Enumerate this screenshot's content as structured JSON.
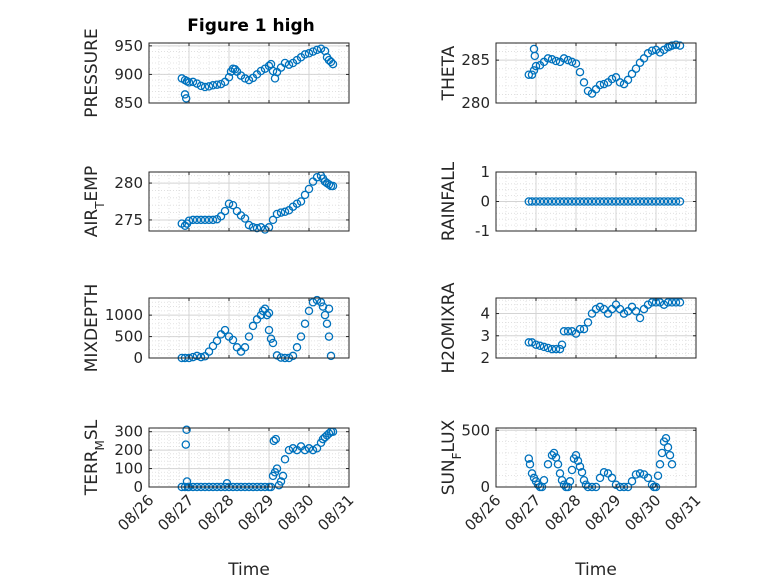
{
  "figure": {
    "title": "Figure 1 high"
  },
  "colors": {
    "marker": "#0072BD",
    "grid": "#dcdcdc",
    "axis": "#262626"
  },
  "chart_data": [
    {
      "type": "scatter",
      "id": "pressure",
      "ylabel_parts": [
        [
          "PRESSURE",
          false
        ]
      ],
      "title": "Figure 1 high",
      "xlabel": "",
      "yticks": [
        850,
        900,
        950
      ],
      "ylim": [
        850,
        955
      ],
      "xlim_days": [
        26,
        31
      ],
      "show_xticks": false,
      "x": [
        26.82,
        26.9,
        26.95,
        27.0,
        27.1,
        27.2,
        27.3,
        27.4,
        27.5,
        27.6,
        27.7,
        27.8,
        27.9,
        28.0,
        28.05,
        28.1,
        28.15,
        28.2,
        28.3,
        28.4,
        28.5,
        28.6,
        28.7,
        28.8,
        28.9,
        29.0,
        29.05,
        29.1,
        29.15,
        29.2,
        29.3,
        29.4,
        29.5,
        29.6,
        29.7,
        29.8,
        29.9,
        30.0,
        30.1,
        30.2,
        30.3,
        30.4,
        30.45,
        30.5,
        30.55,
        30.6,
        26.9,
        26.93
      ],
      "y": [
        893,
        890,
        888,
        886,
        887,
        884,
        880,
        878,
        879,
        881,
        882,
        883,
        887,
        895,
        905,
        910,
        909,
        905,
        898,
        893,
        890,
        894,
        900,
        906,
        910,
        915,
        918,
        906,
        893,
        904,
        912,
        920,
        917,
        920,
        925,
        930,
        935,
        937,
        940,
        943,
        945,
        941,
        930,
        925,
        922,
        918,
        865,
        858
      ]
    },
    {
      "type": "scatter",
      "id": "theta",
      "ylabel_parts": [
        [
          "THETA",
          false
        ]
      ],
      "xlabel": "",
      "yticks": [
        280,
        285
      ],
      "ylim": [
        280,
        287
      ],
      "xlim_days": [
        26,
        31
      ],
      "show_xticks": false,
      "x": [
        26.82,
        26.9,
        26.95,
        27.0,
        27.1,
        27.2,
        27.3,
        27.4,
        27.5,
        27.6,
        27.7,
        27.8,
        27.9,
        28.0,
        28.1,
        28.2,
        28.3,
        28.4,
        28.5,
        28.6,
        28.7,
        28.8,
        28.9,
        29.0,
        29.1,
        29.2,
        29.3,
        29.4,
        29.5,
        29.6,
        29.7,
        29.8,
        29.9,
        30.0,
        30.1,
        30.2,
        30.3,
        30.35,
        30.4,
        30.5,
        30.6,
        26.95,
        26.97
      ],
      "y": [
        283.3,
        283.3,
        283.8,
        284.3,
        284.4,
        284.8,
        285.2,
        285.1,
        284.9,
        284.8,
        285.2,
        285.0,
        284.8,
        284.6,
        283.6,
        282.4,
        281.4,
        281.1,
        281.6,
        282.1,
        282.2,
        282.4,
        282.8,
        283.0,
        282.4,
        282.2,
        282.7,
        283.4,
        284.0,
        284.7,
        285.2,
        285.8,
        286.1,
        286.2,
        285.9,
        286.2,
        286.5,
        286.6,
        286.7,
        286.8,
        286.7,
        286.3,
        285.5
      ]
    },
    {
      "type": "scatter",
      "id": "airtemp",
      "ylabel_parts": [
        [
          "AIR",
          false
        ],
        [
          "T",
          true
        ],
        [
          "EMP",
          false
        ]
      ],
      "xlabel": "",
      "yticks": [
        275,
        280
      ],
      "ylim": [
        273.5,
        281.5
      ],
      "xlim_days": [
        26,
        31
      ],
      "show_xticks": false,
      "x": [
        26.82,
        26.9,
        26.95,
        27.0,
        27.1,
        27.2,
        27.3,
        27.4,
        27.5,
        27.6,
        27.7,
        27.8,
        27.9,
        28.0,
        28.1,
        28.2,
        28.3,
        28.4,
        28.5,
        28.6,
        28.7,
        28.8,
        28.9,
        29.0,
        29.1,
        29.2,
        29.3,
        29.4,
        29.5,
        29.6,
        29.7,
        29.8,
        29.9,
        30.0,
        30.1,
        30.2,
        30.3,
        30.35,
        30.4,
        30.45,
        30.5,
        30.55,
        30.6
      ],
      "y": [
        274.5,
        274.2,
        274.5,
        274.9,
        275.0,
        275.0,
        275.0,
        275.0,
        275.0,
        275.0,
        275.1,
        275.5,
        276.2,
        277.2,
        277.0,
        276.2,
        275.6,
        275.2,
        274.3,
        274.0,
        273.9,
        274.0,
        273.7,
        274.0,
        275.0,
        275.8,
        276.0,
        276.1,
        276.3,
        276.8,
        277.2,
        277.5,
        278.4,
        279.2,
        280.2,
        280.8,
        281.0,
        280.6,
        280.2,
        280.0,
        279.8,
        279.6,
        279.6
      ]
    },
    {
      "type": "scatter",
      "id": "rainfall",
      "ylabel_parts": [
        [
          "RAINFALL",
          false
        ]
      ],
      "xlabel": "",
      "yticks": [
        -1,
        0,
        1
      ],
      "ylim": [
        -1,
        1
      ],
      "xlim_days": [
        26,
        31
      ],
      "show_xticks": false,
      "x": [
        26.82,
        26.9,
        27.0,
        27.1,
        27.2,
        27.3,
        27.4,
        27.5,
        27.6,
        27.7,
        27.8,
        27.9,
        28.0,
        28.1,
        28.2,
        28.3,
        28.4,
        28.5,
        28.6,
        28.7,
        28.8,
        28.9,
        29.0,
        29.1,
        29.2,
        29.3,
        29.4,
        29.5,
        29.6,
        29.7,
        29.8,
        29.9,
        30.0,
        30.1,
        30.2,
        30.3,
        30.4,
        30.5,
        30.6
      ],
      "y": [
        0,
        0,
        0,
        0,
        0,
        0,
        0,
        0,
        0,
        0,
        0,
        0,
        0,
        0,
        0,
        0,
        0,
        0,
        0,
        0,
        0,
        0,
        0,
        0,
        0,
        0,
        0,
        0,
        0,
        0,
        0,
        0,
        0,
        0,
        0,
        0,
        0,
        0,
        0
      ]
    },
    {
      "type": "scatter",
      "id": "mixdepth",
      "ylabel_parts": [
        [
          "MIXDEPTH",
          false
        ]
      ],
      "xlabel": "",
      "yticks": [
        0,
        500,
        1000
      ],
      "ylim": [
        0,
        1400
      ],
      "xlim_days": [
        26,
        31
      ],
      "show_xticks": false,
      "x": [
        26.82,
        26.9,
        27.0,
        27.1,
        27.2,
        27.3,
        27.4,
        27.5,
        27.6,
        27.7,
        27.8,
        27.9,
        28.0,
        28.1,
        28.2,
        28.3,
        28.4,
        28.5,
        28.6,
        28.7,
        28.8,
        28.85,
        28.9,
        28.95,
        29.0,
        29.05,
        29.1,
        29.2,
        29.3,
        29.4,
        29.5,
        29.6,
        29.7,
        29.8,
        29.9,
        30.0,
        30.1,
        30.2,
        30.3,
        30.35,
        30.4,
        30.45,
        30.5,
        30.55,
        29.0,
        30.5
      ],
      "y": [
        0,
        0,
        0,
        20,
        50,
        20,
        40,
        150,
        280,
        400,
        550,
        650,
        500,
        420,
        250,
        150,
        250,
        500,
        750,
        900,
        1000,
        1100,
        1150,
        1000,
        650,
        450,
        350,
        60,
        10,
        0,
        0,
        50,
        250,
        500,
        800,
        1100,
        1300,
        1350,
        1300,
        1200,
        1000,
        800,
        500,
        50,
        1050,
        1150
      ]
    },
    {
      "type": "scatter",
      "id": "h2omixra",
      "ylabel_parts": [
        [
          "H2OMIXRA",
          false
        ]
      ],
      "xlabel": "",
      "yticks": [
        2,
        3,
        4
      ],
      "ylim": [
        2,
        4.7
      ],
      "xlim_days": [
        26,
        31
      ],
      "show_xticks": false,
      "x": [
        26.82,
        26.9,
        27.0,
        27.1,
        27.2,
        27.3,
        27.4,
        27.5,
        27.6,
        27.65,
        27.7,
        27.8,
        27.9,
        28.0,
        28.1,
        28.2,
        28.3,
        28.4,
        28.5,
        28.6,
        28.7,
        28.8,
        28.9,
        29.0,
        29.1,
        29.2,
        29.3,
        29.4,
        29.5,
        29.6,
        29.7,
        29.8,
        29.9,
        30.0,
        30.1,
        30.2,
        30.3,
        30.4,
        30.5,
        30.6
      ],
      "y": [
        2.7,
        2.7,
        2.6,
        2.55,
        2.5,
        2.45,
        2.4,
        2.4,
        2.4,
        2.6,
        3.2,
        3.2,
        3.2,
        3.1,
        3.3,
        3.3,
        3.6,
        4.0,
        4.2,
        4.3,
        4.2,
        4.0,
        4.2,
        4.4,
        4.2,
        4.0,
        4.1,
        4.3,
        4.1,
        3.8,
        4.2,
        4.4,
        4.5,
        4.5,
        4.5,
        4.4,
        4.5,
        4.5,
        4.5,
        4.5
      ]
    },
    {
      "type": "scatter",
      "id": "terrmsl",
      "ylabel_parts": [
        [
          "TERR",
          false
        ],
        [
          "M",
          true
        ],
        [
          "SL",
          false
        ]
      ],
      "xlabel": "Time",
      "yticks": [
        0,
        100,
        200,
        300
      ],
      "ylim": [
        0,
        320
      ],
      "xlim_days": [
        26,
        31
      ],
      "show_xticks": true,
      "xticklabels": [
        "08/26",
        "08/27",
        "08/28",
        "08/29",
        "08/30",
        "08/31"
      ],
      "x": [
        26.82,
        26.9,
        26.95,
        26.97,
        27.0,
        27.1,
        27.2,
        27.3,
        27.4,
        27.5,
        27.6,
        27.7,
        27.8,
        27.9,
        28.0,
        28.1,
        28.2,
        28.3,
        28.4,
        28.5,
        28.6,
        28.7,
        28.8,
        28.9,
        29.0,
        29.05,
        29.1,
        29.15,
        29.2,
        29.25,
        29.3,
        29.35,
        29.4,
        29.5,
        29.6,
        29.7,
        29.8,
        29.9,
        30.0,
        30.1,
        30.2,
        30.3,
        30.35,
        30.4,
        30.45,
        30.5,
        30.55,
        30.6,
        26.92,
        26.94,
        27.95,
        29.12,
        29.17
      ],
      "y": [
        0,
        0,
        30,
        0,
        0,
        0,
        0,
        0,
        0,
        0,
        0,
        0,
        0,
        0,
        0,
        0,
        0,
        0,
        0,
        0,
        0,
        0,
        0,
        0,
        0,
        0,
        60,
        80,
        100,
        10,
        30,
        60,
        150,
        200,
        210,
        200,
        220,
        200,
        210,
        200,
        210,
        240,
        260,
        270,
        280,
        290,
        300,
        300,
        230,
        310,
        20,
        250,
        260
      ]
    },
    {
      "type": "scatter",
      "id": "sunflux",
      "ylabel_parts": [
        [
          "SUN",
          false
        ],
        [
          "F",
          true
        ],
        [
          "LUX",
          false
        ]
      ],
      "xlabel": "Time",
      "yticks": [
        0,
        500
      ],
      "ylim": [
        0,
        520
      ],
      "xlim_days": [
        26,
        31
      ],
      "show_xticks": true,
      "xticklabels": [
        "08/26",
        "08/27",
        "08/28",
        "08/29",
        "08/30",
        "08/31"
      ],
      "x": [
        26.82,
        26.85,
        26.9,
        26.95,
        27.0,
        27.05,
        27.1,
        27.15,
        27.2,
        27.3,
        27.4,
        27.45,
        27.5,
        27.55,
        27.6,
        27.65,
        27.7,
        27.75,
        27.8,
        27.85,
        27.9,
        27.95,
        28.0,
        28.05,
        28.1,
        28.15,
        28.2,
        28.25,
        28.3,
        28.4,
        28.5,
        28.6,
        28.7,
        28.8,
        28.9,
        29.0,
        29.1,
        29.2,
        29.3,
        29.4,
        29.5,
        29.6,
        29.7,
        29.8,
        29.9,
        29.95,
        30.0,
        30.05,
        30.1,
        30.15,
        30.2,
        30.25,
        30.3,
        30.35,
        30.4
      ],
      "y": [
        250,
        200,
        120,
        80,
        50,
        20,
        0,
        0,
        60,
        200,
        280,
        300,
        260,
        200,
        120,
        60,
        20,
        0,
        0,
        50,
        150,
        250,
        280,
        230,
        180,
        130,
        60,
        20,
        0,
        0,
        0,
        80,
        130,
        120,
        80,
        20,
        0,
        0,
        0,
        50,
        110,
        120,
        110,
        80,
        20,
        0,
        0,
        100,
        200,
        300,
        400,
        430,
        350,
        280,
        200
      ]
    }
  ]
}
